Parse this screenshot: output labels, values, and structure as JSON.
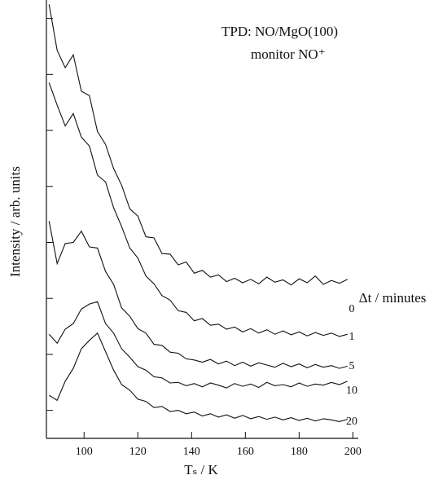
{
  "chart_data": {
    "type": "line",
    "annotations": [
      "TPD: NO/MgO(100)",
      "monitor NO⁺"
    ],
    "x_label": "Tₛ / K",
    "y_label": "Intensity / arb. units",
    "legend_title": "Δt / minutes",
    "x": [
      87,
      90,
      93,
      96,
      99,
      102,
      105,
      108,
      111,
      114,
      117,
      120,
      123,
      126,
      129,
      132,
      135,
      138,
      141,
      144,
      147,
      150,
      153,
      156,
      159,
      162,
      165,
      168,
      171,
      174,
      177,
      180,
      183,
      186,
      189,
      192,
      195,
      198
    ],
    "series": [
      {
        "name": "0",
        "color": "#111111",
        "values": [
          7.75,
          6.93,
          6.62,
          6.85,
          6.2,
          6.12,
          5.48,
          5.25,
          4.82,
          4.52,
          4.1,
          3.97,
          3.6,
          3.58,
          3.3,
          3.29,
          3.1,
          3.15,
          2.95,
          3.0,
          2.88,
          2.92,
          2.8,
          2.86,
          2.78,
          2.84,
          2.76,
          2.88,
          2.79,
          2.83,
          2.74,
          2.85,
          2.78,
          2.9,
          2.75,
          2.82,
          2.77,
          2.84
        ]
      },
      {
        "name": "1",
        "color": "#111111",
        "values": [
          6.35,
          5.95,
          5.58,
          5.8,
          5.38,
          5.22,
          4.7,
          4.58,
          4.12,
          3.78,
          3.4,
          3.22,
          2.9,
          2.76,
          2.55,
          2.47,
          2.28,
          2.25,
          2.1,
          2.14,
          2.02,
          2.04,
          1.95,
          1.99,
          1.9,
          1.96,
          1.88,
          1.94,
          1.86,
          1.92,
          1.85,
          1.9,
          1.83,
          1.89,
          1.84,
          1.88,
          1.82,
          1.86
        ]
      },
      {
        "name": "5",
        "color": "#111111",
        "values": [
          3.88,
          3.12,
          3.48,
          3.5,
          3.7,
          3.42,
          3.4,
          2.98,
          2.75,
          2.33,
          2.18,
          1.96,
          1.88,
          1.68,
          1.66,
          1.54,
          1.52,
          1.42,
          1.4,
          1.36,
          1.41,
          1.33,
          1.38,
          1.3,
          1.36,
          1.29,
          1.35,
          1.31,
          1.27,
          1.34,
          1.28,
          1.33,
          1.26,
          1.32,
          1.27,
          1.3,
          1.25,
          1.29
        ]
      },
      {
        "name": "10",
        "color": "#111111",
        "values": [
          1.86,
          1.7,
          1.95,
          2.05,
          2.31,
          2.4,
          2.44,
          2.05,
          1.88,
          1.6,
          1.45,
          1.28,
          1.22,
          1.1,
          1.08,
          0.99,
          1.0,
          0.94,
          0.98,
          0.92,
          0.99,
          0.95,
          0.9,
          0.98,
          0.93,
          0.97,
          0.91,
          1.0,
          0.94,
          0.96,
          0.92,
          0.99,
          0.93,
          0.97,
          0.95,
          1.0,
          0.96,
          1.02
        ]
      },
      {
        "name": "20",
        "color": "#111111",
        "values": [
          0.77,
          0.68,
          1.02,
          1.25,
          1.6,
          1.75,
          1.88,
          1.55,
          1.22,
          0.96,
          0.86,
          0.7,
          0.66,
          0.55,
          0.57,
          0.48,
          0.5,
          0.44,
          0.47,
          0.4,
          0.44,
          0.38,
          0.42,
          0.36,
          0.41,
          0.35,
          0.39,
          0.34,
          0.38,
          0.33,
          0.37,
          0.32,
          0.36,
          0.31,
          0.35,
          0.33,
          0.3,
          0.34
        ]
      }
    ],
    "xlim": [
      86,
      202
    ],
    "xticks": [
      100,
      120,
      140,
      160,
      180,
      200
    ],
    "ylim": [
      0,
      7.8
    ],
    "yticks": [
      0.5,
      1.5,
      2.5,
      3.5,
      4.5,
      5.5,
      6.5,
      7.5
    ],
    "grid": false
  }
}
